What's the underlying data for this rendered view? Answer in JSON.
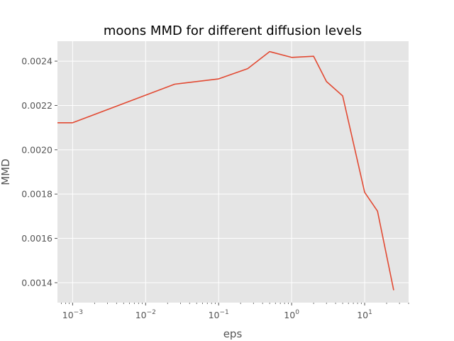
{
  "chart_data": {
    "type": "line",
    "title": "moons MMD for different diffusion levels",
    "xlabel": "eps",
    "ylabel": "MMD",
    "x_scale": "log",
    "xlim": [
      0.00062,
      40
    ],
    "ylim": [
      0.00131,
      0.00249
    ],
    "grid": true,
    "background": "#e5e5e5",
    "grid_color": "#ffffff",
    "line_color": "#e24a33",
    "x_major_ticks": [
      {
        "value": 0.001,
        "base": "10",
        "exp": "−3"
      },
      {
        "value": 0.01,
        "base": "10",
        "exp": "−2"
      },
      {
        "value": 0.1,
        "base": "10",
        "exp": "−1"
      },
      {
        "value": 1,
        "base": "10",
        "exp": "0"
      },
      {
        "value": 10,
        "base": "10",
        "exp": "1"
      }
    ],
    "y_ticks": [
      {
        "value": 0.0014,
        "label": "0.0014"
      },
      {
        "value": 0.0016,
        "label": "0.0016"
      },
      {
        "value": 0.0018,
        "label": "0.0018"
      },
      {
        "value": 0.002,
        "label": "0.0020"
      },
      {
        "value": 0.0022,
        "label": "0.0022"
      },
      {
        "value": 0.0024,
        "label": "0.0024"
      }
    ],
    "series": [
      {
        "x": [
          0,
          0.001,
          0.025,
          0.1,
          0.25,
          0.5,
          1,
          2,
          3,
          5,
          10,
          15,
          25
        ],
        "y": [
          0.002122,
          0.002122,
          0.002296,
          0.00232,
          0.002366,
          0.002443,
          0.002417,
          0.002422,
          0.002308,
          0.002243,
          0.001808,
          0.001723,
          0.001366
        ]
      }
    ]
  }
}
